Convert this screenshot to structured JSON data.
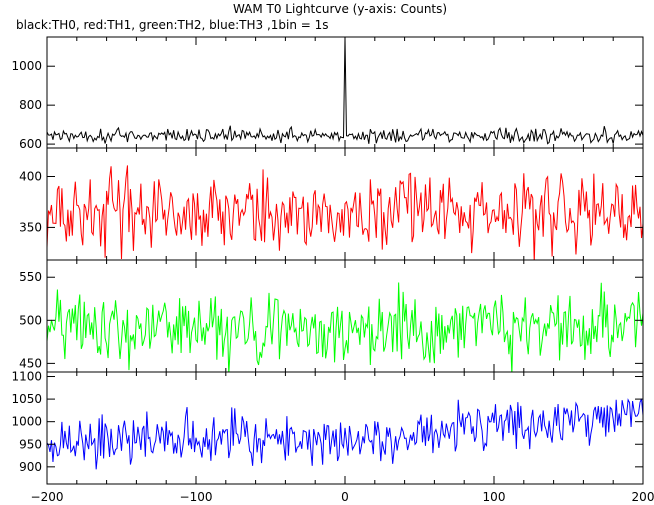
{
  "chart_data": {
    "type": "line",
    "title": "WAM T0 Lightcurve (y-axis: Counts)",
    "subtitle": "black:TH0, red:TH1, green:TH2, blue:TH3 ,1bin = 1s",
    "x_range": [
      -200,
      200
    ],
    "x_ticks": [
      -200,
      -100,
      0,
      100,
      200
    ],
    "x_tick_labels": [
      "−200",
      "−100",
      "0",
      "100",
      "200"
    ],
    "panels": [
      {
        "series": "TH0",
        "color": "#000000",
        "y_range": [
          580,
          1150
        ],
        "y_ticks": [
          600,
          800,
          1000
        ],
        "y_tick_labels": [
          "600",
          "800",
          "1000"
        ],
        "baseline": 645,
        "noise": 18,
        "spike": {
          "x": 0,
          "value": 1150
        }
      },
      {
        "series": "TH1",
        "color": "#ff0000",
        "y_range": [
          318,
          428
        ],
        "y_ticks": [
          350,
          400
        ],
        "y_tick_labels": [
          "350",
          "400"
        ],
        "baseline": 365,
        "noise": 18
      },
      {
        "series": "TH2",
        "color": "#00ff00",
        "y_range": [
          440,
          570
        ],
        "y_ticks": [
          450,
          500,
          550
        ],
        "y_tick_labels": [
          "450",
          "500",
          "550"
        ],
        "baseline": 492,
        "noise": 20
      },
      {
        "series": "TH3",
        "color": "#0000ff",
        "y_range": [
          862,
          1110
        ],
        "y_ticks": [
          900,
          950,
          1000,
          1050,
          1100
        ],
        "y_tick_labels": [
          "900",
          "950",
          "1000",
          "1050",
          "1100"
        ],
        "baseline": 990,
        "noise": 28,
        "trend_start": 945,
        "trend_end": 1000
      }
    ]
  }
}
